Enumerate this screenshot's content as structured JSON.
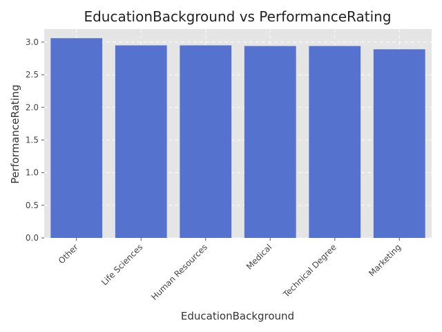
{
  "chart_data": {
    "type": "bar",
    "title": "EducationBackground vs PerformanceRating",
    "xlabel": "EducationBackground",
    "ylabel": "PerformanceRating",
    "categories": [
      "Other",
      "Life Sciences",
      "Human Resources",
      "Medical",
      "Technical Degree",
      "Marketing"
    ],
    "values": [
      3.06,
      2.95,
      2.95,
      2.94,
      2.94,
      2.89
    ],
    "ylim": [
      0,
      3.2
    ],
    "yticks": [
      "0.0",
      "0.5",
      "1.0",
      "1.5",
      "2.0",
      "2.5",
      "3.0"
    ],
    "grid": true,
    "colors": {
      "bar": "#5572cf",
      "plot_background": "#e5e5e5",
      "grid": "#ffffff"
    }
  }
}
